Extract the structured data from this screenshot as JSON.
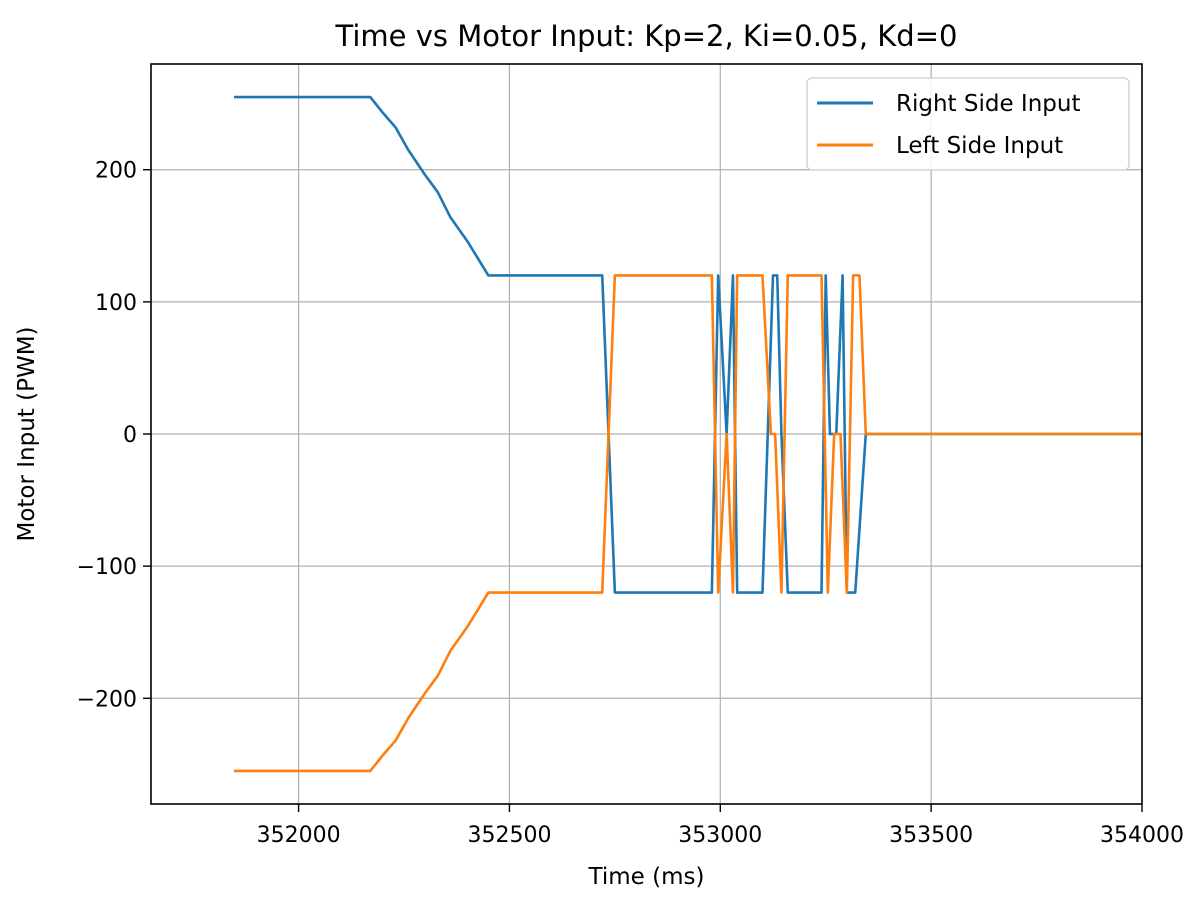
{
  "chart_data": {
    "type": "line",
    "title": "Time vs Motor Input: Kp=2, Ki=0.05, Kd=0",
    "xlabel": "Time (ms)",
    "ylabel": "Motor Input (PWM)",
    "xlim": [
      351650,
      354000
    ],
    "ylim": [
      -280,
      280
    ],
    "xticks": [
      352000,
      352500,
      353000,
      353500,
      354000
    ],
    "xtick_labels": [
      "352000",
      "352500",
      "353000",
      "353500",
      "354000"
    ],
    "yticks": [
      -200,
      -100,
      0,
      100,
      200
    ],
    "ytick_labels": [
      "−200",
      "−100",
      "0",
      "100",
      "200"
    ],
    "grid": true,
    "legend_position": "top-right",
    "series": [
      {
        "name": "Right Side Input",
        "color": "#1f77b4",
        "points": [
          [
            351850,
            255
          ],
          [
            352170,
            255
          ],
          [
            352200,
            243
          ],
          [
            352230,
            232
          ],
          [
            352260,
            215
          ],
          [
            352300,
            196
          ],
          [
            352330,
            183
          ],
          [
            352360,
            164
          ],
          [
            352400,
            146
          ],
          [
            352450,
            120
          ],
          [
            352720,
            120
          ],
          [
            352750,
            -120
          ],
          [
            352980,
            -120
          ],
          [
            352995,
            120
          ],
          [
            353015,
            0
          ],
          [
            353030,
            120
          ],
          [
            353040,
            -120
          ],
          [
            353100,
            -120
          ],
          [
            353125,
            120
          ],
          [
            353135,
            120
          ],
          [
            353145,
            0
          ],
          [
            353160,
            -120
          ],
          [
            353240,
            -120
          ],
          [
            353250,
            120
          ],
          [
            353260,
            0
          ],
          [
            353275,
            0
          ],
          [
            353290,
            120
          ],
          [
            353300,
            -120
          ],
          [
            353320,
            -120
          ],
          [
            353345,
            0
          ],
          [
            354000,
            0
          ]
        ]
      },
      {
        "name": "Left Side Input",
        "color": "#ff7f0e",
        "points": [
          [
            351850,
            -255
          ],
          [
            352170,
            -255
          ],
          [
            352200,
            -243
          ],
          [
            352230,
            -232
          ],
          [
            352260,
            -215
          ],
          [
            352300,
            -196
          ],
          [
            352330,
            -183
          ],
          [
            352360,
            -164
          ],
          [
            352400,
            -146
          ],
          [
            352450,
            -120
          ],
          [
            352720,
            -120
          ],
          [
            352750,
            120
          ],
          [
            352980,
            120
          ],
          [
            352995,
            -120
          ],
          [
            353015,
            0
          ],
          [
            353030,
            -120
          ],
          [
            353040,
            120
          ],
          [
            353100,
            120
          ],
          [
            353120,
            0
          ],
          [
            353130,
            0
          ],
          [
            353145,
            -120
          ],
          [
            353160,
            120
          ],
          [
            353240,
            120
          ],
          [
            353255,
            -120
          ],
          [
            353270,
            0
          ],
          [
            353285,
            0
          ],
          [
            353300,
            -120
          ],
          [
            353315,
            120
          ],
          [
            353330,
            120
          ],
          [
            353345,
            0
          ],
          [
            354000,
            0
          ]
        ]
      }
    ]
  }
}
